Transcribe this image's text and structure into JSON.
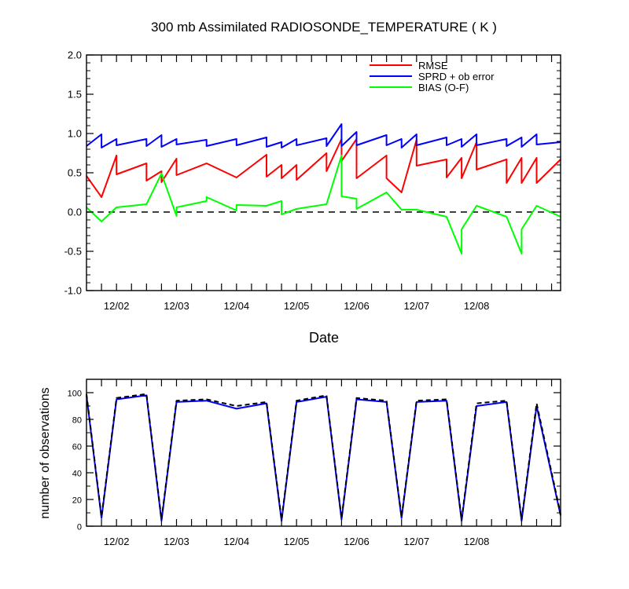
{
  "chart_data": [
    {
      "type": "line",
      "title": "300 mb Assimilated RADIOSONDE_TEMPERATURE ( K )",
      "xlabel": "Date",
      "ylabel": "",
      "ylim": [
        -1.0,
        2.0
      ],
      "xlim": [
        12.42,
        20.32
      ],
      "y_ticks": [
        "2.0",
        "1.5",
        "1.0",
        "0.5",
        "0.0",
        "-0.5",
        "-1.0"
      ],
      "x_ticks": [
        "12/02",
        "12/03",
        "12/04",
        "12/05",
        "12/06",
        "12/07",
        "12/08"
      ],
      "reference_line": 0.0,
      "legend_position": "top-right",
      "series": [
        {
          "name": "RMSE",
          "color": "#ff0000",
          "x": [
            12.42,
            12.67,
            12.92,
            12.92,
            13.42,
            13.42,
            13.67,
            13.67,
            13.92,
            13.92,
            14.42,
            14.92,
            14.92,
            15.42,
            15.42,
            15.67,
            15.67,
            15.92,
            15.92,
            16.42,
            16.42,
            16.67,
            16.67,
            16.92,
            16.92,
            17.42,
            17.42,
            17.67,
            17.92,
            17.92,
            18.42,
            18.42,
            18.67,
            18.67,
            18.92,
            18.92,
            19.42,
            19.42,
            19.67,
            19.67,
            19.92,
            19.92,
            20.32
          ],
          "y": [
            0.46,
            0.19,
            0.72,
            0.48,
            0.62,
            0.4,
            0.52,
            0.38,
            0.68,
            0.47,
            0.62,
            0.44,
            0.44,
            0.73,
            0.45,
            0.6,
            0.43,
            0.6,
            0.41,
            0.75,
            0.52,
            0.93,
            0.65,
            0.93,
            0.43,
            0.72,
            0.43,
            0.25,
            0.92,
            0.59,
            0.67,
            0.44,
            0.69,
            0.43,
            0.89,
            0.54,
            0.67,
            0.37,
            0.69,
            0.37,
            0.69,
            0.37,
            0.67
          ]
        },
        {
          "name": "SPRD + ob error",
          "color": "#0000ff",
          "x": [
            12.42,
            12.67,
            12.67,
            12.92,
            12.92,
            13.42,
            13.42,
            13.67,
            13.67,
            13.92,
            13.92,
            14.42,
            14.42,
            14.92,
            14.92,
            15.42,
            15.42,
            15.67,
            15.67,
            15.92,
            15.92,
            16.42,
            16.42,
            16.67,
            16.67,
            16.92,
            16.92,
            17.42,
            17.42,
            17.67,
            17.67,
            17.92,
            17.92,
            18.42,
            18.42,
            18.67,
            18.67,
            18.92,
            18.92,
            19.42,
            19.42,
            19.67,
            19.67,
            19.92,
            19.92,
            20.32
          ],
          "y": [
            0.84,
            0.99,
            0.82,
            0.93,
            0.85,
            0.93,
            0.84,
            0.98,
            0.83,
            0.93,
            0.86,
            0.92,
            0.84,
            0.93,
            0.85,
            0.95,
            0.83,
            0.89,
            0.82,
            0.93,
            0.85,
            0.94,
            0.84,
            1.12,
            0.84,
            1.02,
            0.85,
            0.98,
            0.85,
            0.93,
            0.82,
            0.99,
            0.85,
            0.95,
            0.85,
            0.93,
            0.83,
            0.99,
            0.85,
            0.93,
            0.84,
            0.95,
            0.83,
            0.99,
            0.86,
            0.89
          ]
        },
        {
          "name": "BIAS (O-F)",
          "color": "#00ff00",
          "x": [
            12.42,
            12.67,
            12.92,
            13.42,
            13.67,
            13.92,
            13.92,
            14.42,
            14.42,
            14.92,
            14.92,
            15.42,
            15.67,
            15.67,
            15.92,
            16.42,
            16.67,
            16.67,
            16.92,
            16.92,
            17.42,
            17.67,
            17.92,
            18.42,
            18.67,
            18.67,
            18.92,
            19.42,
            19.67,
            19.67,
            19.92,
            20.32
          ],
          "y": [
            0.06,
            -0.12,
            0.06,
            0.1,
            0.49,
            -0.05,
            0.06,
            0.14,
            0.19,
            0.02,
            0.09,
            0.08,
            0.14,
            -0.03,
            0.04,
            0.1,
            0.72,
            0.2,
            0.17,
            0.04,
            0.25,
            0.03,
            0.03,
            -0.06,
            -0.53,
            -0.22,
            0.08,
            -0.06,
            -0.53,
            -0.22,
            0.08,
            -0.06
          ]
        }
      ]
    },
    {
      "type": "line",
      "title": "",
      "xlabel": "",
      "ylabel": "number of observations",
      "ylim": [
        0,
        110
      ],
      "xlim": [
        12.42,
        20.32
      ],
      "y_ticks": [
        "100",
        "80",
        "60",
        "40",
        "20",
        "0"
      ],
      "x_ticks": [
        "12/02",
        "12/03",
        "12/04",
        "12/05",
        "12/06",
        "12/07",
        "12/08"
      ],
      "series": [
        {
          "color": "#0000ff",
          "style": "solid",
          "x": [
            12.42,
            12.67,
            12.92,
            13.42,
            13.67,
            13.92,
            14.42,
            14.92,
            15.42,
            15.67,
            15.92,
            16.42,
            16.67,
            16.92,
            17.42,
            17.67,
            17.92,
            18.42,
            18.67,
            18.92,
            19.42,
            19.67,
            19.92,
            20.32
          ],
          "y": [
            98,
            6,
            95,
            98,
            4,
            93,
            94,
            88,
            92,
            4,
            93,
            97,
            5,
            95,
            93,
            6,
            93,
            94,
            4,
            90,
            93,
            4,
            90,
            8
          ]
        },
        {
          "color": "#000000",
          "style": "dashed",
          "x": [
            12.42,
            12.67,
            12.92,
            13.42,
            13.67,
            13.92,
            14.42,
            14.92,
            15.42,
            15.67,
            15.92,
            16.42,
            16.67,
            16.92,
            17.42,
            17.67,
            17.92,
            18.42,
            18.67,
            18.92,
            19.42,
            19.67,
            19.92,
            20.32
          ],
          "y": [
            99,
            7,
            96,
            99,
            5,
            94,
            95,
            90,
            93,
            5,
            94,
            98,
            6,
            96,
            94,
            7,
            94,
            95,
            5,
            92,
            94,
            5,
            92,
            9
          ]
        }
      ]
    }
  ]
}
